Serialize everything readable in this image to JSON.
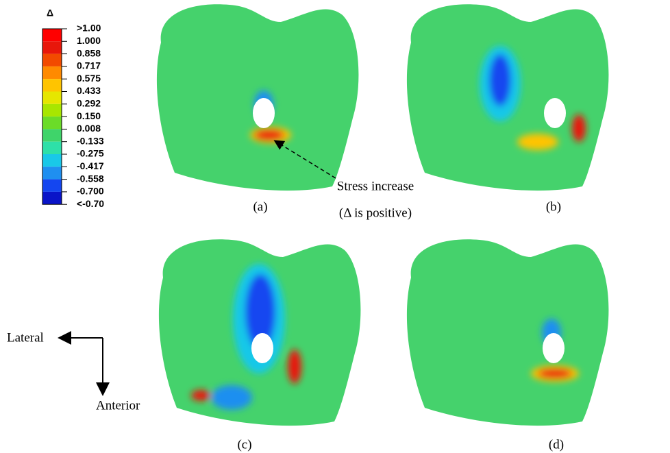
{
  "legend": {
    "title": "Δ",
    "labels": [
      ">1.00",
      "1.000",
      "0.858",
      "0.717",
      "0.575",
      "0.433",
      "0.292",
      "0.150",
      "0.008",
      "-0.133",
      "-0.275",
      "-0.417",
      "-0.558",
      "-0.700",
      "<-0.70"
    ],
    "colors": [
      "#ff0000",
      "#e8170b",
      "#f24a00",
      "#ff8a00",
      "#ffc400",
      "#e6e600",
      "#a8e600",
      "#6bdc28",
      "#3fd46a",
      "#2ee0a8",
      "#19c8e8",
      "#1f8ff0",
      "#1446f0",
      "#0a14c8"
    ]
  },
  "panels": [
    {
      "label": "(a)"
    },
    {
      "label": "(b)"
    },
    {
      "label": "(c)"
    },
    {
      "label": "(d)"
    }
  ],
  "annotation": {
    "line1": "Stress  increase",
    "line2": "(Δ is positive)"
  },
  "directions": {
    "lateral": "Lateral",
    "anterior": "Anterior"
  }
}
